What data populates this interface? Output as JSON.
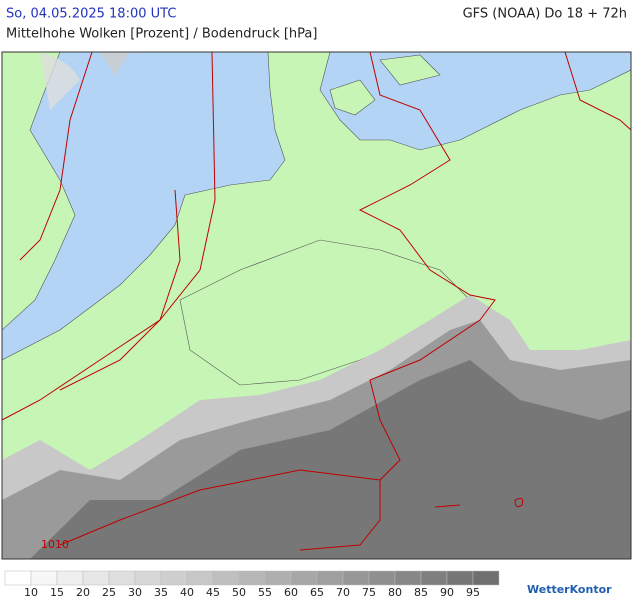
{
  "header": {
    "left": "So, 04.05.2025 18:00 UTC",
    "right": "GFS (NOAA) Do 18 + 72h",
    "subtitle": "Mittelhohe Wolken [Prozent] / Bodendruck [hPa]"
  },
  "map": {
    "isobar_label": "1010"
  },
  "legend": {
    "ticks": [
      10,
      15,
      20,
      25,
      30,
      35,
      40,
      45,
      50,
      55,
      60,
      65,
      70,
      75,
      80,
      85,
      90,
      95
    ],
    "colors": [
      "#ffffff",
      "#f7f7f7",
      "#efefef",
      "#e7e7e7",
      "#dfdfdf",
      "#d7d7d7",
      "#cfcfcf",
      "#c7c7c7",
      "#bfbfbf",
      "#b7b7b7",
      "#afafaf",
      "#a7a7a7",
      "#9f9f9f",
      "#979797",
      "#8f8f8f",
      "#878787",
      "#7f7f7f",
      "#777777",
      "#6f6f6f"
    ]
  },
  "logo": "WetterKontor"
}
